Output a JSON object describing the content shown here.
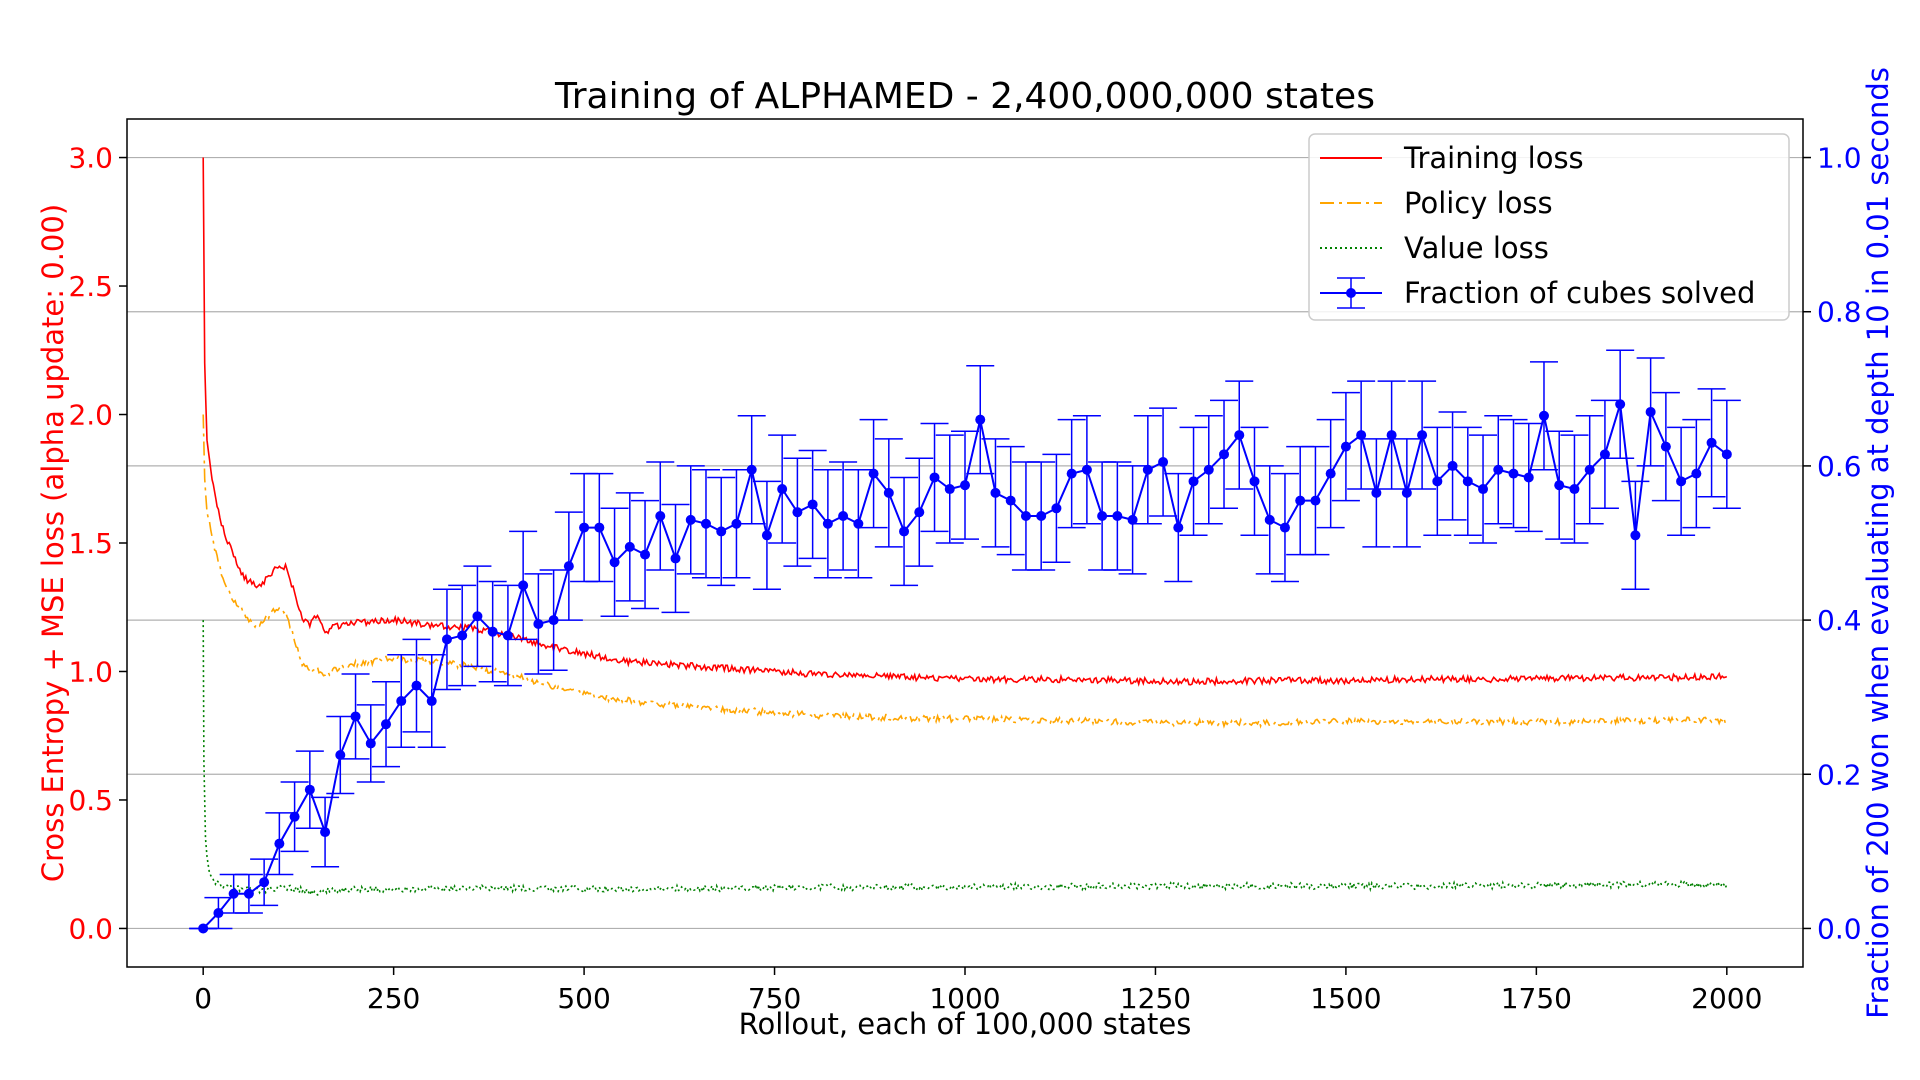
{
  "chart_data": {
    "type": "line",
    "title": "Training of ALPHAMED - 2,400,000,000 states",
    "xlabel": "Rollout, each of 100,000 states",
    "ylabel_left": "Cross Entropy + MSE loss (alpha update: 0.00)",
    "ylabel_right": "Fraction of 200 won when evaluating at depth 10 in 0.01 seconds",
    "xlim": [
      -100,
      2100
    ],
    "ylim_left": [
      -0.15,
      3.15
    ],
    "ylim_right": [
      -0.05,
      1.05
    ],
    "xticks": [
      0,
      250,
      500,
      750,
      1000,
      1250,
      1500,
      1750,
      2000
    ],
    "xtick_labels": [
      "0",
      "250",
      "500",
      "750",
      "1000",
      "1250",
      "1500",
      "1750",
      "2000"
    ],
    "yticks_left": [
      0.0,
      0.5,
      1.0,
      1.5,
      2.0,
      2.5,
      3.0
    ],
    "ytick_labels_left": [
      "0.0",
      "0.5",
      "1.0",
      "1.5",
      "2.0",
      "2.5",
      "3.0"
    ],
    "yticks_right": [
      0.0,
      0.2,
      0.4,
      0.6,
      0.8,
      1.0
    ],
    "ytick_labels_right": [
      "0.0",
      "0.2",
      "0.4",
      "0.6",
      "0.8",
      "1.0"
    ],
    "grid": "horizontal lines at right-axis ticks",
    "legend_position": "top-right",
    "colors": {
      "left_axis": "#ff0000",
      "right_axis": "#0000ff"
    },
    "series": [
      {
        "name": "Training loss",
        "axis": "left",
        "color": "#ff0000",
        "style": "solid",
        "x": [
          0,
          2,
          5,
          10,
          15,
          20,
          30,
          40,
          50,
          60,
          70,
          80,
          90,
          100,
          110,
          120,
          130,
          140,
          150,
          160,
          170,
          180,
          200,
          250,
          300,
          350,
          400,
          450,
          500,
          550,
          600,
          650,
          700,
          750,
          800,
          900,
          1000,
          1100,
          1200,
          1300,
          1400,
          1500,
          1600,
          1700,
          1800,
          1900,
          2000
        ],
        "values": [
          3.0,
          2.2,
          1.9,
          1.78,
          1.7,
          1.62,
          1.52,
          1.45,
          1.38,
          1.35,
          1.33,
          1.35,
          1.38,
          1.42,
          1.4,
          1.3,
          1.2,
          1.18,
          1.22,
          1.15,
          1.17,
          1.18,
          1.19,
          1.2,
          1.18,
          1.17,
          1.14,
          1.1,
          1.07,
          1.04,
          1.03,
          1.02,
          1.01,
          1.0,
          0.99,
          0.98,
          0.97,
          0.97,
          0.965,
          0.96,
          0.965,
          0.965,
          0.97,
          0.97,
          0.975,
          0.975,
          0.98
        ]
      },
      {
        "name": "Policy loss",
        "axis": "left",
        "color": "#ffa500",
        "style": "dashdot",
        "x": [
          0,
          2,
          5,
          10,
          15,
          20,
          30,
          40,
          50,
          60,
          70,
          80,
          90,
          100,
          110,
          120,
          130,
          140,
          150,
          160,
          170,
          180,
          200,
          250,
          300,
          350,
          400,
          450,
          500,
          550,
          600,
          650,
          700,
          750,
          800,
          900,
          1000,
          1100,
          1200,
          1300,
          1400,
          1500,
          1600,
          1700,
          1800,
          1900,
          2000
        ],
        "values": [
          2.0,
          1.75,
          1.62,
          1.55,
          1.48,
          1.42,
          1.33,
          1.28,
          1.24,
          1.2,
          1.18,
          1.2,
          1.23,
          1.25,
          1.22,
          1.12,
          1.03,
          1.0,
          1.01,
          0.98,
          1.0,
          1.02,
          1.03,
          1.05,
          1.04,
          1.02,
          0.99,
          0.95,
          0.91,
          0.89,
          0.87,
          0.86,
          0.85,
          0.84,
          0.83,
          0.82,
          0.815,
          0.81,
          0.805,
          0.8,
          0.8,
          0.805,
          0.805,
          0.805,
          0.805,
          0.81,
          0.81
        ]
      },
      {
        "name": "Value loss",
        "axis": "left",
        "color": "#008000",
        "style": "dotted",
        "x": [
          0,
          1,
          3,
          5,
          8,
          12,
          20,
          30,
          50,
          80,
          110,
          140,
          180,
          250,
          400,
          600,
          800,
          1000,
          1200,
          1400,
          1600,
          1800,
          2000
        ],
        "values": [
          1.2,
          0.65,
          0.35,
          0.28,
          0.22,
          0.19,
          0.17,
          0.16,
          0.155,
          0.15,
          0.16,
          0.14,
          0.15,
          0.155,
          0.155,
          0.155,
          0.16,
          0.16,
          0.165,
          0.165,
          0.165,
          0.17,
          0.17
        ]
      },
      {
        "name": "Fraction of cubes solved",
        "axis": "right",
        "color": "#0000ff",
        "style": "solid-markers-errorbars",
        "x": [
          0,
          20,
          40,
          60,
          80,
          100,
          120,
          140,
          160,
          180,
          200,
          220,
          240,
          260,
          280,
          300,
          320,
          340,
          360,
          380,
          400,
          420,
          440,
          460,
          480,
          500,
          520,
          540,
          560,
          580,
          600,
          620,
          640,
          660,
          680,
          700,
          720,
          740,
          760,
          780,
          800,
          820,
          840,
          860,
          880,
          900,
          920,
          940,
          960,
          980,
          1000,
          1020,
          1040,
          1060,
          1080,
          1100,
          1120,
          1140,
          1160,
          1180,
          1200,
          1220,
          1240,
          1260,
          1280,
          1300,
          1320,
          1340,
          1360,
          1380,
          1400,
          1420,
          1440,
          1460,
          1480,
          1500,
          1520,
          1540,
          1560,
          1580,
          1600,
          1620,
          1640,
          1660,
          1680,
          1700,
          1720,
          1740,
          1760,
          1780,
          1800,
          1820,
          1840,
          1860,
          1880,
          1900,
          1920,
          1940,
          1960,
          1980,
          2000
        ],
        "values": [
          0.0,
          0.02,
          0.045,
          0.045,
          0.06,
          0.11,
          0.145,
          0.18,
          0.125,
          0.225,
          0.275,
          0.24,
          0.265,
          0.295,
          0.315,
          0.295,
          0.375,
          0.38,
          0.405,
          0.385,
          0.38,
          0.445,
          0.395,
          0.4,
          0.47,
          0.52,
          0.52,
          0.475,
          0.495,
          0.485,
          0.535,
          0.48,
          0.53,
          0.525,
          0.515,
          0.525,
          0.595,
          0.51,
          0.57,
          0.54,
          0.55,
          0.525,
          0.535,
          0.525,
          0.59,
          0.565,
          0.515,
          0.54,
          0.585,
          0.57,
          0.575,
          0.66,
          0.565,
          0.555,
          0.535,
          0.535,
          0.545,
          0.59,
          0.595,
          0.535,
          0.535,
          0.53,
          0.595,
          0.605,
          0.52,
          0.58,
          0.595,
          0.615,
          0.64,
          0.58,
          0.53,
          0.52,
          0.555,
          0.555,
          0.59,
          0.625,
          0.64,
          0.565,
          0.64,
          0.565,
          0.64,
          0.58,
          0.6,
          0.58,
          0.57,
          0.595,
          0.59,
          0.585,
          0.665,
          0.575,
          0.57,
          0.595,
          0.615,
          0.68,
          0.51,
          0.67,
          0.625,
          0.58,
          0.59,
          0.63,
          0.615
        ],
        "error": [
          0.0,
          0.02,
          0.025,
          0.025,
          0.03,
          0.04,
          0.045,
          0.05,
          0.045,
          0.05,
          0.055,
          0.05,
          0.055,
          0.06,
          0.06,
          0.06,
          0.065,
          0.065,
          0.065,
          0.065,
          0.065,
          0.07,
          0.065,
          0.065,
          0.07,
          0.07,
          0.07,
          0.07,
          0.07,
          0.07,
          0.07,
          0.07,
          0.07,
          0.07,
          0.07,
          0.07,
          0.07,
          0.07,
          0.07,
          0.07,
          0.07,
          0.07,
          0.07,
          0.07,
          0.07,
          0.07,
          0.07,
          0.07,
          0.07,
          0.07,
          0.07,
          0.07,
          0.07,
          0.07,
          0.07,
          0.07,
          0.07,
          0.07,
          0.07,
          0.07,
          0.07,
          0.07,
          0.07,
          0.07,
          0.07,
          0.07,
          0.07,
          0.07,
          0.07,
          0.07,
          0.07,
          0.07,
          0.07,
          0.07,
          0.07,
          0.07,
          0.07,
          0.07,
          0.07,
          0.07,
          0.07,
          0.07,
          0.07,
          0.07,
          0.07,
          0.07,
          0.07,
          0.07,
          0.07,
          0.07,
          0.07,
          0.07,
          0.07,
          0.07,
          0.07,
          0.07,
          0.07,
          0.07,
          0.07,
          0.07,
          0.07
        ]
      }
    ]
  }
}
